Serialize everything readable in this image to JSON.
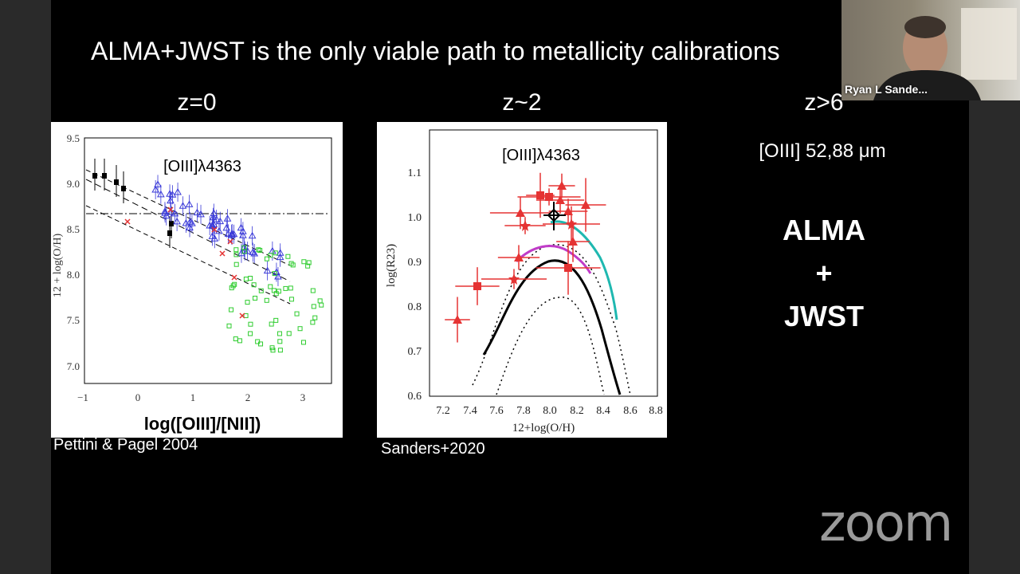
{
  "slide": {
    "title": "ALMA+JWST is the only viable path to metallicity calibrations",
    "columns": [
      {
        "heading": "z=0"
      },
      {
        "heading": "z~2"
      },
      {
        "heading": "z>6"
      }
    ],
    "left_panel": {
      "annotation": "[OIII]λ4363",
      "xlabel": "log([OIII]/[NII])",
      "ylabel": "12 + log(O/H)",
      "x_ticks": [
        "−1",
        "0",
        "1",
        "2",
        "3"
      ],
      "y_ticks": [
        "9.5",
        "9.0",
        "8.5",
        "8.0",
        "7.5",
        "7.0"
      ],
      "caption": "Pettini & Pagel 2004"
    },
    "middle_panel": {
      "annotation": "[OIII]λ4363",
      "xlabel": "12+log(O/H)",
      "ylabel": "log(R23)",
      "x_ticks": [
        "7.2",
        "7.4",
        "7.6",
        "7.8",
        "8.0",
        "8.2",
        "8.4",
        "8.6",
        "8.8"
      ],
      "y_ticks": [
        "1.1",
        "1.0",
        "0.9",
        "0.8",
        "0.7",
        "0.6"
      ],
      "caption": "Sanders+2020"
    },
    "right_panel": {
      "line_label": "[OIII] 52,88 μm",
      "stack": [
        "ALMA",
        "+",
        "JWST"
      ]
    }
  },
  "webcam": {
    "participant_name": "Ryan L Sande..."
  },
  "branding": {
    "logo_text": "zoom"
  },
  "colors": {
    "background": "#000000",
    "text": "#ffffff",
    "red_points": "#e53333",
    "teal_curve": "#1fb8b0",
    "magenta_curve": "#c03cc8",
    "blue_points": "#3a3ad8",
    "green_points": "#2ecc2e"
  }
}
